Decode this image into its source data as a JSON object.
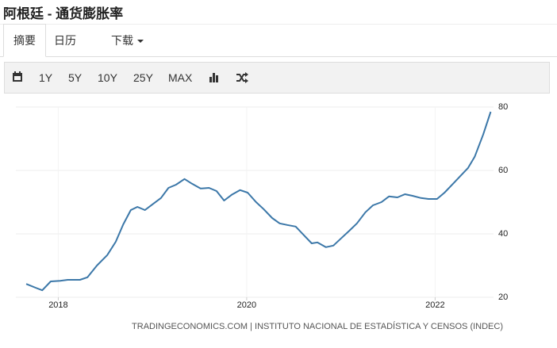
{
  "header": {
    "title": "阿根廷 - 通货膨胀率"
  },
  "tabs": [
    "摘要",
    "日历",
    "下载"
  ],
  "toolbar": [
    "1Y",
    "5Y",
    "10Y",
    "25Y",
    "MAX"
  ],
  "chart_data": {
    "type": "line",
    "color": "#3b77a8",
    "x": [
      2017.66,
      2017.76,
      2017.83,
      2017.92,
      2018.02,
      2018.1,
      2018.23,
      2018.31,
      2018.41,
      2018.52,
      2018.61,
      2018.69,
      2018.77,
      2018.84,
      2018.92,
      2019.0,
      2019.09,
      2019.17,
      2019.25,
      2019.34,
      2019.42,
      2019.51,
      2019.6,
      2019.68,
      2019.76,
      2019.84,
      2019.93,
      2020.01,
      2020.1,
      2020.18,
      2020.27,
      2020.35,
      2020.43,
      2020.52,
      2020.6,
      2020.69,
      2020.75,
      2020.84,
      2020.92,
      2021.01,
      2021.09,
      2021.17,
      2021.26,
      2021.34,
      2021.43,
      2021.51,
      2021.6,
      2021.68,
      2021.76,
      2021.85,
      2021.93,
      2022.02,
      2022.1,
      2022.19,
      2022.27,
      2022.35,
      2022.42,
      2022.51,
      2022.59
    ],
    "values": [
      24.2,
      23,
      22.2,
      25,
      25.2,
      25.5,
      25.5,
      26.3,
      30,
      33.3,
      37.5,
      43,
      47.5,
      48.5,
      47.5,
      49.3,
      51.3,
      54.5,
      55.5,
      57.3,
      55.8,
      54.3,
      54.5,
      53.5,
      50.5,
      52.3,
      53.8,
      53,
      50,
      47.8,
      45,
      43.3,
      42.8,
      42.3,
      39.8,
      37,
      37.3,
      35.8,
      36.3,
      38.8,
      41,
      43.3,
      46.8,
      49,
      50,
      51.8,
      51.5,
      52.5,
      52,
      51.3,
      51,
      51,
      53,
      55.8,
      58.3,
      60.8,
      64.3,
      71.3,
      78.5
    ],
    "xlim": [
      2017.55,
      2022.62
    ],
    "xticks": [
      2018,
      2020,
      2022
    ],
    "ylim": [
      20,
      80
    ],
    "yticks": [
      20,
      40,
      60,
      80
    ],
    "grid": true
  },
  "source": "TRADINGECONOMICS.COM | INSTITUTO NACIONAL DE ESTADÍSTICA Y CENSOS (INDEC)"
}
